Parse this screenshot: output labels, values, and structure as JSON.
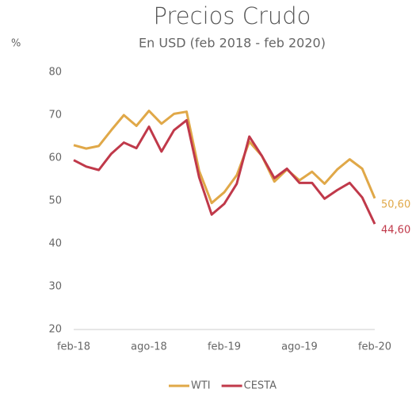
{
  "chart_data": {
    "type": "line",
    "title": "Precios Crudo",
    "subtitle": "En USD (feb 2018 - feb 2020)",
    "y_label": "%",
    "categories": [
      "feb-18",
      null,
      null,
      null,
      null,
      null,
      "ago-18",
      null,
      null,
      null,
      null,
      null,
      "feb-19",
      null,
      null,
      null,
      null,
      null,
      "ago-19",
      null,
      null,
      null,
      null,
      null,
      "feb-20"
    ],
    "series": [
      {
        "name": "WTI",
        "color": "#e0a848",
        "values": [
          63,
          62.2,
          62.8,
          66.5,
          70,
          67.5,
          71,
          68,
          70.3,
          70.8,
          57,
          49.5,
          52,
          56,
          63.8,
          60.5,
          54.5,
          57.3,
          54.8,
          56.8,
          54,
          57.3,
          59.7,
          57.5,
          50.6
        ],
        "value_labels": [
          null,
          null,
          null,
          null,
          null,
          null,
          null,
          null,
          null,
          null,
          null,
          null,
          null,
          null,
          null,
          null,
          null,
          null,
          null,
          null,
          null,
          null,
          null,
          null,
          "50,60"
        ]
      },
      {
        "name": "CESTA",
        "color": "#c0394a",
        "values": [
          59.5,
          58,
          57.2,
          61,
          63.6,
          62.3,
          67.3,
          61.5,
          66.5,
          68.8,
          55.5,
          46.8,
          49.3,
          54,
          65,
          60.5,
          55.3,
          57.5,
          54.2,
          54.2,
          50.5,
          52.5,
          54.2,
          50.8,
          44.6
        ],
        "value_labels": [
          null,
          null,
          null,
          null,
          null,
          null,
          null,
          null,
          null,
          null,
          null,
          null,
          null,
          null,
          null,
          null,
          null,
          null,
          null,
          null,
          null,
          null,
          null,
          null,
          "44,60"
        ]
      }
    ],
    "ylim": [
      20,
      80
    ],
    "yticks": [
      20,
      30,
      40,
      50,
      60,
      70,
      80
    ],
    "grid": false,
    "legend": "bottom"
  }
}
